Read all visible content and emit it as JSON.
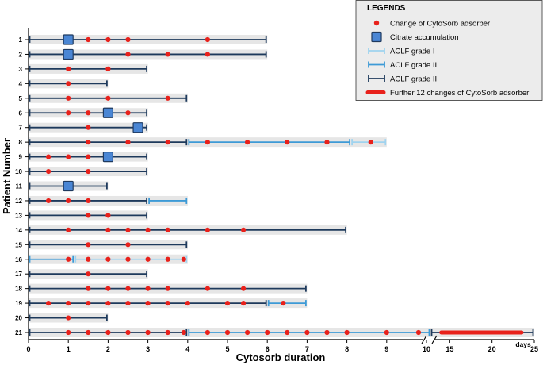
{
  "chart_data": {
    "type": "swimmer",
    "xlabel": "Cytosorb duration",
    "ylabel": "Patient Number",
    "x_unit": "days",
    "xlim": [
      0,
      25
    ],
    "x_break": {
      "before": 10,
      "after": 13
    },
    "xticks": [
      0,
      1,
      2,
      3,
      4,
      5,
      6,
      7,
      8,
      9,
      10,
      15,
      20,
      25
    ],
    "legend": {
      "title": "LEGENDS",
      "entries": [
        {
          "key": "change",
          "label": "Change of CytoSorb adsorber"
        },
        {
          "key": "citrate",
          "label": "Citrate accumulation"
        },
        {
          "key": "g1",
          "label": "ACLF grade I"
        },
        {
          "key": "g2",
          "label": "ACLF grade II"
        },
        {
          "key": "g3",
          "label": "ACLF grade III"
        },
        {
          "key": "further",
          "label": "Further 12 changes of CytoSorb adsorber"
        }
      ]
    },
    "colors": {
      "change": "#e8211b",
      "citrate_fill": "#4a86d4",
      "citrate_stroke": "#1f3a5f",
      "g1": "#9fd3ef",
      "g2": "#3d9ad6",
      "g3": "#1e3a5c",
      "shade": "#e6e6e6",
      "further": "#e8211b"
    },
    "patients": [
      {
        "id": "1",
        "bar_end": 6,
        "segments": [
          {
            "grade": "g3",
            "from": 0,
            "to": 6
          }
        ],
        "changes": [
          1,
          1.5,
          2,
          2.5,
          4.5
        ],
        "citrate": [
          1
        ]
      },
      {
        "id": "2",
        "bar_end": 6,
        "segments": [
          {
            "grade": "g3",
            "from": 0,
            "to": 6
          }
        ],
        "changes": [
          2.5,
          3.5,
          4.5
        ],
        "citrate": [
          1
        ]
      },
      {
        "id": "3",
        "bar_end": 3,
        "segments": [
          {
            "grade": "g3",
            "from": 0,
            "to": 3
          }
        ],
        "changes": [
          1,
          2
        ],
        "citrate": []
      },
      {
        "id": "4",
        "bar_end": 2,
        "segments": [
          {
            "grade": "g3",
            "from": 0,
            "to": 2
          }
        ],
        "changes": [
          1
        ],
        "citrate": []
      },
      {
        "id": "5",
        "bar_end": 4,
        "segments": [
          {
            "grade": "g3",
            "from": 0,
            "to": 4
          }
        ],
        "changes": [
          1,
          2,
          3.5
        ],
        "citrate": []
      },
      {
        "id": "6",
        "bar_end": 3,
        "segments": [
          {
            "grade": "g3",
            "from": 0,
            "to": 3
          }
        ],
        "changes": [
          1,
          1.5,
          2.5
        ],
        "citrate": [
          2
        ]
      },
      {
        "id": "7",
        "bar_end": 3,
        "segments": [
          {
            "grade": "g3",
            "from": 0,
            "to": 3
          }
        ],
        "changes": [
          1.5
        ],
        "citrate": [
          2.75
        ]
      },
      {
        "id": "8",
        "bar_end": 9,
        "segments": [
          {
            "grade": "g3",
            "from": 0,
            "to": 4
          },
          {
            "grade": "g2",
            "from": 4,
            "to": 8.1
          },
          {
            "grade": "g1",
            "from": 8.1,
            "to": 9
          }
        ],
        "changes": [
          1.5,
          2.5,
          3.5,
          4.5,
          5.5,
          6.5,
          7.5,
          8.6
        ],
        "citrate": []
      },
      {
        "id": "9",
        "bar_end": 3,
        "segments": [
          {
            "grade": "g3",
            "from": 0,
            "to": 3
          }
        ],
        "changes": [
          0.5,
          1,
          1.5
        ],
        "citrate": [
          2
        ]
      },
      {
        "id": "10",
        "bar_end": 3,
        "segments": [
          {
            "grade": "g3",
            "from": 0,
            "to": 3
          }
        ],
        "changes": [
          0.5,
          1.5
        ],
        "citrate": []
      },
      {
        "id": "11",
        "bar_end": 2,
        "segments": [
          {
            "grade": "g3",
            "from": 0,
            "to": 2
          }
        ],
        "changes": [],
        "citrate": [
          1
        ]
      },
      {
        "id": "12",
        "bar_end": 4,
        "segments": [
          {
            "grade": "g3",
            "from": 0,
            "to": 3
          },
          {
            "grade": "g2",
            "from": 3,
            "to": 4
          }
        ],
        "changes": [
          0.5,
          1,
          1.5
        ],
        "citrate": []
      },
      {
        "id": "13",
        "bar_end": 3,
        "segments": [
          {
            "grade": "g3",
            "from": 0,
            "to": 3
          }
        ],
        "changes": [
          1.5,
          2
        ],
        "citrate": []
      },
      {
        "id": "14",
        "bar_end": 8,
        "segments": [
          {
            "grade": "g3",
            "from": 0,
            "to": 8
          }
        ],
        "changes": [
          1,
          2,
          2.5,
          3,
          3.5,
          4.5,
          5.4
        ],
        "citrate": []
      },
      {
        "id": "15",
        "bar_end": 4,
        "segments": [
          {
            "grade": "g3",
            "from": 0,
            "to": 4
          }
        ],
        "changes": [
          1.5,
          2.5
        ],
        "citrate": []
      },
      {
        "id": "16",
        "bar_end": 4,
        "segments": [
          {
            "grade": "g2",
            "from": 0,
            "to": 1.15
          },
          {
            "grade": "g1",
            "from": 1.15,
            "to": 4
          }
        ],
        "changes": [
          1,
          1.5,
          2,
          2.5,
          3,
          3.5,
          3.9
        ],
        "citrate": []
      },
      {
        "id": "17",
        "bar_end": 3,
        "segments": [
          {
            "grade": "g3",
            "from": 0,
            "to": 3
          }
        ],
        "changes": [
          1.5
        ],
        "citrate": []
      },
      {
        "id": "18",
        "bar_end": 7,
        "segments": [
          {
            "grade": "g3",
            "from": 0,
            "to": 7
          }
        ],
        "changes": [
          1.5,
          2,
          2.5,
          3,
          3.5,
          4.5,
          5.4
        ],
        "citrate": []
      },
      {
        "id": "19",
        "bar_end": 7,
        "segments": [
          {
            "grade": "g3",
            "from": 0,
            "to": 6
          },
          {
            "grade": "g2",
            "from": 6,
            "to": 7
          }
        ],
        "changes": [
          0.5,
          1,
          1.5,
          2,
          2.5,
          3,
          3.5,
          4,
          5,
          5.4,
          6.4
        ],
        "citrate": []
      },
      {
        "id": "20",
        "bar_end": 2,
        "segments": [
          {
            "grade": "g3",
            "from": 0,
            "to": 2
          }
        ],
        "changes": [
          1
        ],
        "citrate": []
      },
      {
        "id": "21",
        "bar_end": 25,
        "segments": [
          {
            "grade": "g3",
            "from": 0,
            "to": 4
          },
          {
            "grade": "g2",
            "from": 4,
            "to": 12
          },
          {
            "grade": "g3",
            "from": 12,
            "to": 25
          }
        ],
        "changes": [
          1,
          1.5,
          2,
          2.5,
          3,
          3.5,
          3.9,
          4.5,
          5,
          5.5,
          6,
          6.5,
          7,
          7.5,
          8,
          9,
          9.8
        ],
        "citrate": [],
        "further_changes": {
          "from": 14,
          "to": 23.5
        }
      }
    ]
  }
}
